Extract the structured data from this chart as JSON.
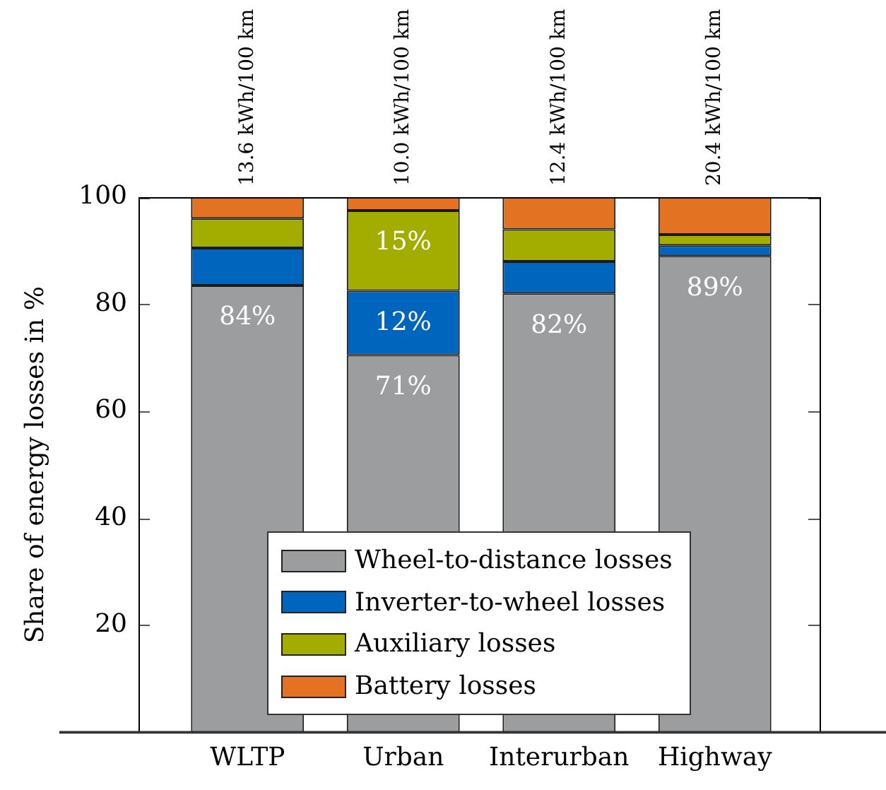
{
  "chart_data": {
    "type": "bar",
    "stacked": true,
    "categories": [
      "WLTP",
      "Urban",
      "Interurban",
      "Highway"
    ],
    "series": [
      {
        "name": "Wheel-to-distance losses",
        "color": "#9c9d9f",
        "values": [
          83.5,
          70.5,
          82,
          89
        ],
        "value_labels": [
          "84%",
          "71%",
          "82%",
          "89%"
        ]
      },
      {
        "name": "Inverter-to-wheel losses",
        "color": "#0065bd",
        "values": [
          7,
          12,
          6,
          2
        ],
        "value_labels": [
          null,
          "12%",
          null,
          null
        ]
      },
      {
        "name": "Auxiliary losses",
        "color": "#a2ad00",
        "values": [
          5.5,
          15,
          6,
          2
        ],
        "value_labels": [
          null,
          "15%",
          null,
          null
        ]
      },
      {
        "name": "Battery losses",
        "color": "#e37222",
        "values": [
          4,
          2.5,
          6,
          7
        ]
      }
    ],
    "ylabel": "Share of energy losses in %",
    "ylim": [
      0,
      100
    ],
    "yticks": [
      20,
      40,
      60,
      80,
      100
    ],
    "grid": false,
    "legend": "bottom",
    "annotations": [
      "13.6 kWh/100 km",
      "10.0 kWh/100 km",
      "12.4 kWh/100 km",
      "20.4 kWh/100 km"
    ]
  }
}
